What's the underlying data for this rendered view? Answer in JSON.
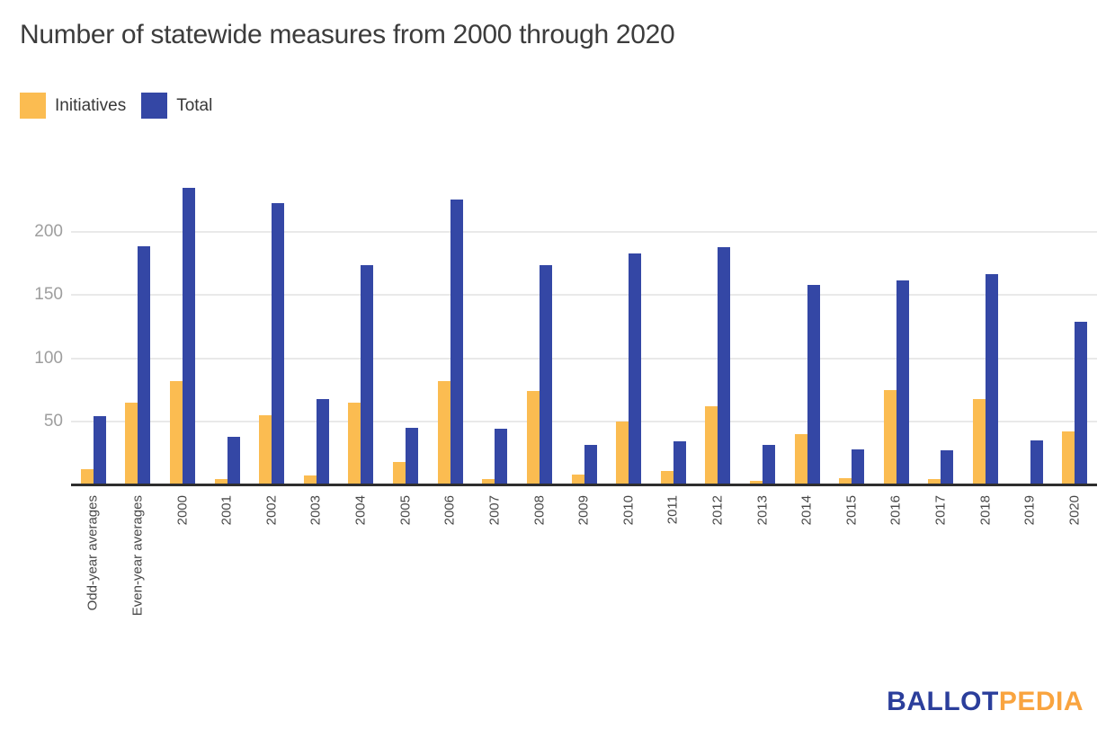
{
  "title": "Number of statewide measures from 2000 through 2020",
  "legend": {
    "initiatives_label": "Initiatives",
    "total_label": "Total"
  },
  "colors": {
    "initiatives": "#fbbc51",
    "total": "#3447a5",
    "axis_line": "#2e2e2e",
    "gridline": "#e9e9e9",
    "y_tick_text": "#9e9e9e",
    "x_tick_text": "#484848",
    "logo_blue": "#2b3e9b",
    "logo_orange": "#f9a43f"
  },
  "logo": {
    "part1": "BALLOT",
    "part2": "PEDIA"
  },
  "chart_data": {
    "type": "bar",
    "title": "Number of statewide measures from 2000 through 2020",
    "categories": [
      "Odd-year averages",
      "Even-year averages",
      "2000",
      "2001",
      "2002",
      "2003",
      "2004",
      "2005",
      "2006",
      "2007",
      "2008",
      "2009",
      "2010",
      "2011",
      "2012",
      "2013",
      "2014",
      "2015",
      "2016",
      "2017",
      "2018",
      "2019",
      "2020"
    ],
    "series": [
      {
        "name": "Initiatives",
        "color": "#fbbc51",
        "values": [
          12,
          65,
          82,
          4,
          55,
          7,
          65,
          18,
          82,
          4,
          74,
          8,
          50,
          11,
          62,
          3,
          40,
          5,
          75,
          4,
          68,
          1,
          42
        ]
      },
      {
        "name": "Total",
        "color": "#3447a5",
        "values": [
          54,
          189,
          235,
          38,
          223,
          68,
          174,
          45,
          226,
          44,
          174,
          31,
          183,
          34,
          188,
          31,
          158,
          28,
          162,
          27,
          167,
          35,
          129
        ]
      }
    ],
    "ylabel": "",
    "xlabel": "",
    "yticks": [
      50,
      100,
      150,
      200
    ],
    "ylim": [
      0,
      249
    ],
    "grid": true,
    "legend_position": "top-left",
    "x_label_rotation": -90
  }
}
